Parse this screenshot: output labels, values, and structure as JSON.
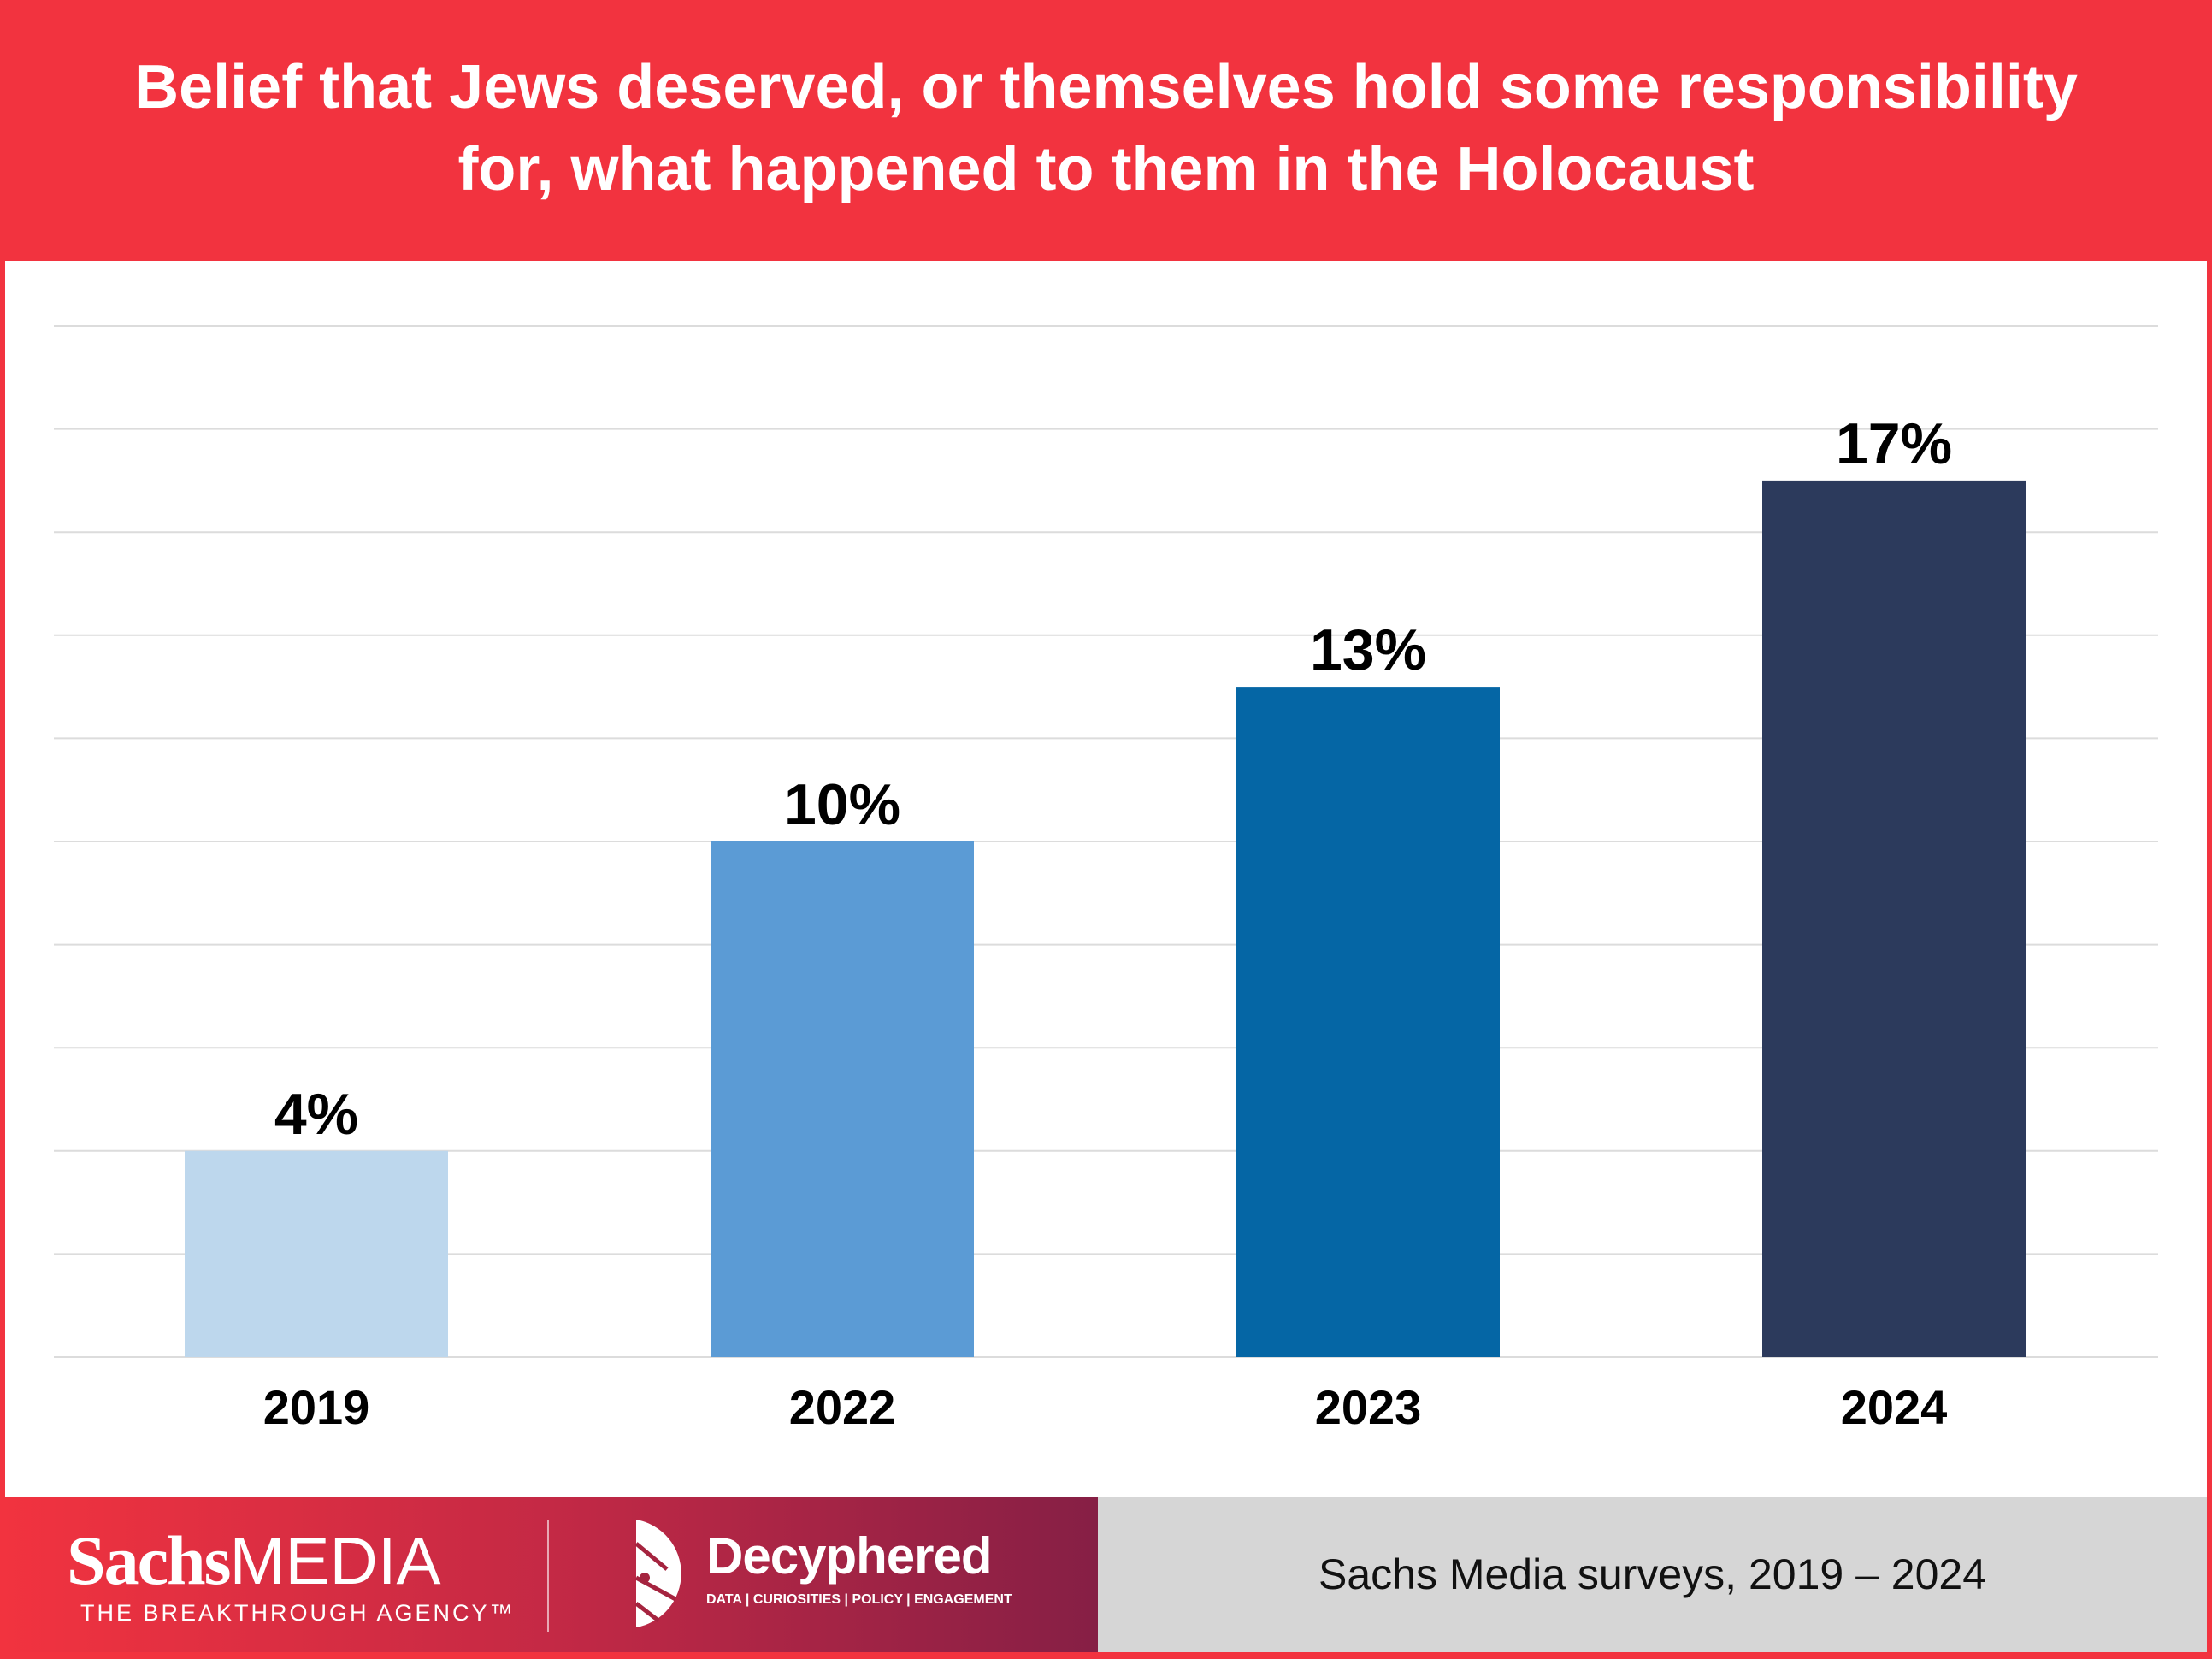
{
  "chart_data": {
    "type": "bar",
    "title": "Belief that Jews deserved, or themselves hold some responsibility for, what happened to them in the Holocaust",
    "categories": [
      "2019",
      "2022",
      "2023",
      "2024"
    ],
    "values": [
      4,
      10,
      13,
      17
    ],
    "data_labels": [
      "4%",
      "10%",
      "13%",
      "17%"
    ],
    "colors": [
      "#bdd7ed",
      "#5b9bd5",
      "#0566a5",
      "#2c3a5c"
    ],
    "xlabel": "",
    "ylabel": "",
    "ylim": [
      0,
      20
    ],
    "grid_step": 2,
    "grid": true,
    "legend": "none"
  },
  "footer": {
    "source": "Sachs Media surveys, 2019 – 2024",
    "sachs_logo": {
      "name_bold": "Sachs",
      "name_light": "MEDIA",
      "tagline": "THE BREAKTHROUGH AGENCY™"
    },
    "decyphered_logo": {
      "name": "Decyphered",
      "tagline": "DATA | CURIOSITIES | POLICY | ENGAGEMENT"
    }
  },
  "colors": {
    "brand_red": "#f2333f",
    "footer_gray": "#d6d6d6"
  }
}
